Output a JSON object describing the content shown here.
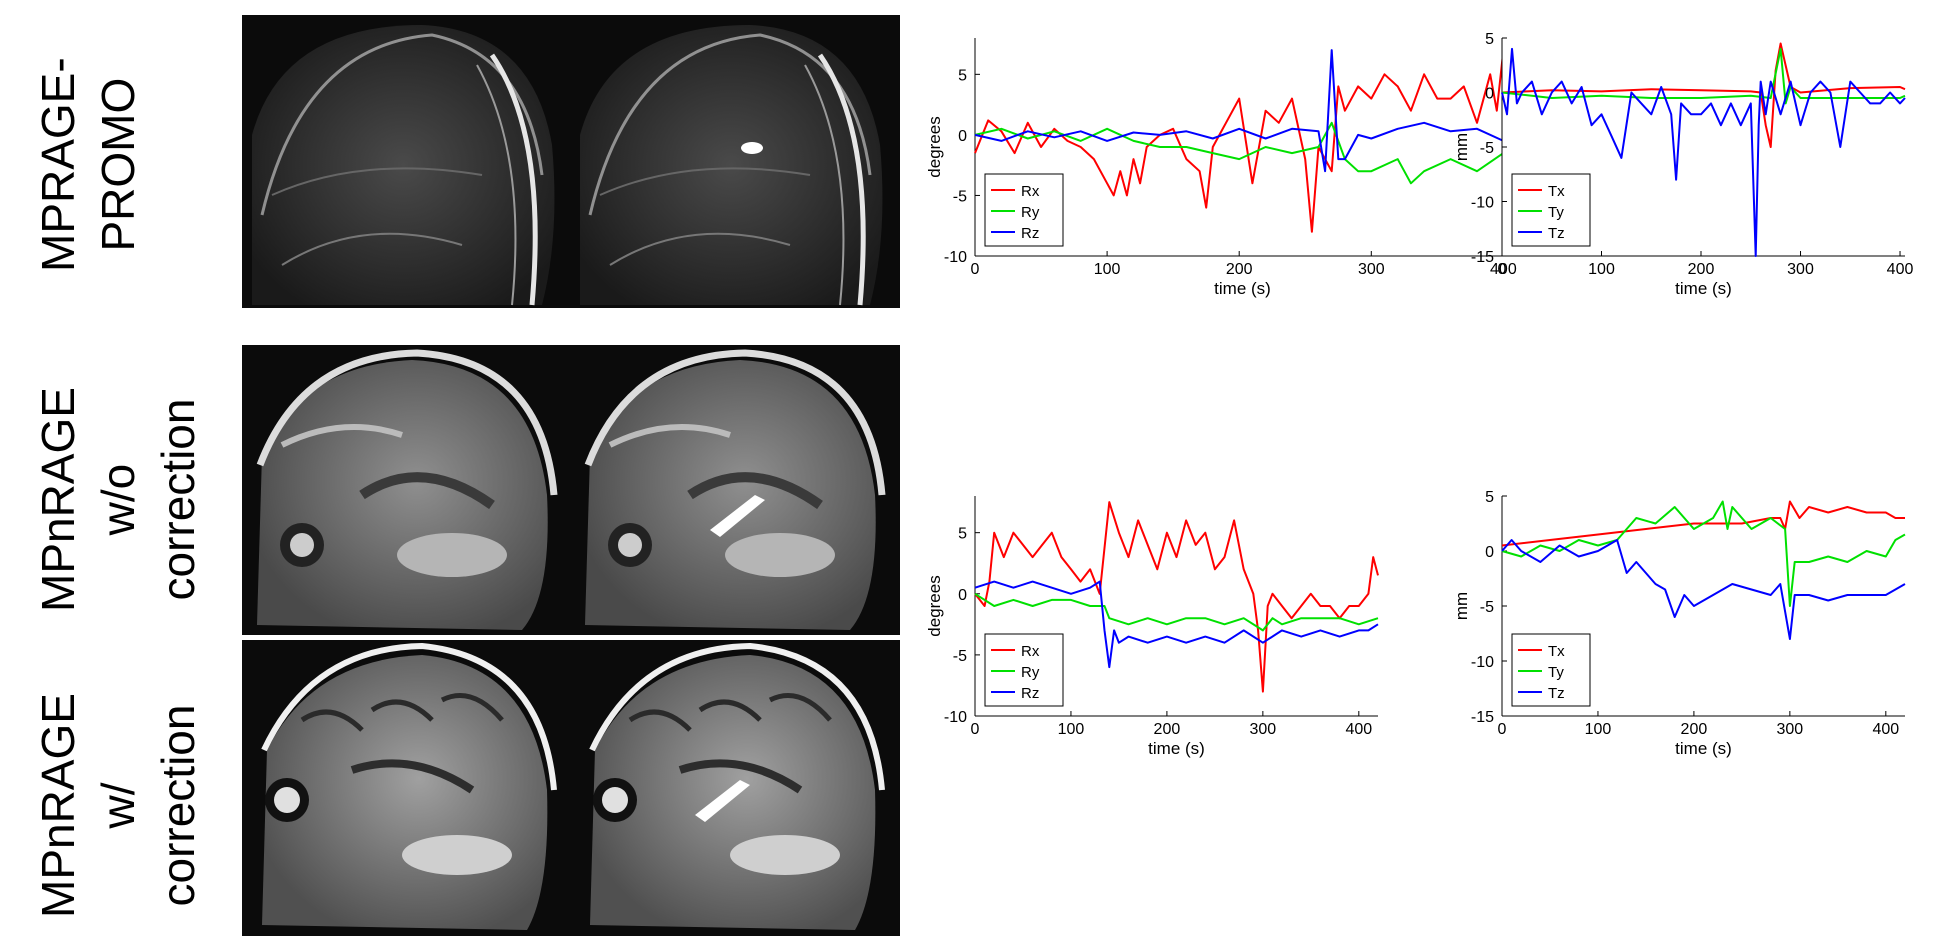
{
  "row_labels": {
    "promo": [
      "MPRAGE-",
      "PROMO"
    ],
    "wo": [
      "MPnRAGE",
      "w/o",
      "correction"
    ],
    "w": [
      "MPnRAGE",
      "w/",
      "correction"
    ]
  },
  "images": {
    "promo_left": "mprage-promo-sagittal",
    "promo_right": "mprage-promo-sagittal-annotated",
    "wo_left": "mpnrage-without-correction-sagittal",
    "wo_right": "mpnrage-without-correction-sagittal-annotated",
    "w_left": "mpnrage-with-correction-sagittal",
    "w_right": "mpnrage-with-correction-sagittal-annotated"
  },
  "colors": {
    "x": "#ff0000",
    "y": "#00e000",
    "z": "#0000ff"
  },
  "chart_data": [
    {
      "type": "line",
      "ylabel": "degrees",
      "xlabel": "time (s)",
      "xlim": [
        0,
        405
      ],
      "ylim": [
        -10,
        8
      ],
      "xticks": [
        0,
        100,
        200,
        300,
        400
      ],
      "yticks": [
        -10,
        -5,
        0,
        5
      ],
      "legend": "bottom-left",
      "series": [
        {
          "name": "Rx",
          "color": "#ff0000",
          "x": [
            0,
            10,
            20,
            30,
            40,
            50,
            60,
            70,
            80,
            90,
            100,
            105,
            110,
            115,
            120,
            125,
            130,
            140,
            150,
            160,
            170,
            175,
            180,
            190,
            200,
            210,
            220,
            230,
            240,
            250,
            255,
            260,
            270,
            275,
            280,
            290,
            300,
            310,
            320,
            330,
            340,
            350,
            360,
            370,
            380,
            390,
            395,
            400,
            405
          ],
          "y": [
            -1.5,
            1.2,
            0.3,
            -1.5,
            1,
            -1,
            0.5,
            -0.5,
            -1,
            -2,
            -4,
            -5,
            -3,
            -5,
            -2,
            -4,
            -1,
            0,
            0.5,
            -2,
            -3,
            -6,
            -1,
            1,
            3,
            -4,
            2,
            1,
            3,
            -2,
            -8,
            -1,
            -3,
            4,
            2,
            4,
            3,
            5,
            4,
            2,
            5,
            3,
            3,
            4,
            1,
            5,
            2,
            7,
            3.5
          ]
        },
        {
          "name": "Ry",
          "color": "#00e000",
          "x": [
            0,
            20,
            40,
            60,
            80,
            100,
            120,
            140,
            160,
            180,
            200,
            220,
            240,
            260,
            270,
            280,
            290,
            300,
            320,
            330,
            340,
            360,
            380,
            400,
            405
          ],
          "y": [
            0,
            0.5,
            -0.3,
            0.3,
            -0.5,
            0.5,
            -0.5,
            -1,
            -1,
            -1.5,
            -2,
            -1,
            -1.5,
            -1,
            1,
            -2,
            -3,
            -3,
            -2,
            -4,
            -3,
            -2,
            -3,
            -1.5,
            -1
          ]
        },
        {
          "name": "Rz",
          "color": "#0000ff",
          "x": [
            0,
            20,
            40,
            60,
            80,
            100,
            120,
            140,
            160,
            180,
            200,
            220,
            240,
            260,
            265,
            270,
            275,
            280,
            290,
            300,
            320,
            340,
            360,
            380,
            400,
            405
          ],
          "y": [
            0,
            -0.5,
            0.3,
            -0.2,
            0.3,
            -0.5,
            0.2,
            0,
            0.3,
            -0.3,
            0.5,
            -0.3,
            0.5,
            0.3,
            -3,
            7,
            -2,
            -2,
            0,
            -0.3,
            0.5,
            1,
            0.3,
            0.5,
            -0.5,
            0
          ]
        }
      ]
    },
    {
      "type": "line",
      "ylabel": "mm",
      "xlabel": "time (s)",
      "xlim": [
        0,
        405
      ],
      "ylim": [
        -15,
        5
      ],
      "xticks": [
        0,
        100,
        200,
        300,
        400
      ],
      "yticks": [
        -15,
        -10,
        -5,
        0,
        5
      ],
      "legend": "bottom-left",
      "series": [
        {
          "name": "Tx",
          "color": "#ff0000",
          "x": [
            0,
            50,
            100,
            150,
            200,
            250,
            260,
            265,
            270,
            275,
            280,
            290,
            300,
            350,
            400,
            405
          ],
          "y": [
            0,
            0.2,
            0.1,
            0.3,
            0.2,
            0.1,
            0,
            -3,
            -5,
            2,
            4.5,
            0.5,
            0,
            0.4,
            0.5,
            0.3
          ]
        },
        {
          "name": "Ty",
          "color": "#00e000",
          "x": [
            0,
            50,
            100,
            150,
            200,
            250,
            270,
            280,
            285,
            290,
            300,
            350,
            400,
            405
          ],
          "y": [
            0,
            -0.5,
            -0.3,
            -0.5,
            -0.5,
            -0.3,
            -0.5,
            4,
            -1,
            0.5,
            -0.5,
            -0.5,
            -0.5,
            -0.3
          ]
        },
        {
          "name": "Tz",
          "color": "#0000ff",
          "x": [
            0,
            5,
            10,
            15,
            20,
            30,
            40,
            50,
            60,
            70,
            80,
            90,
            100,
            110,
            120,
            125,
            130,
            140,
            150,
            160,
            170,
            175,
            180,
            190,
            200,
            210,
            220,
            230,
            240,
            250,
            255,
            258,
            260,
            265,
            270,
            280,
            290,
            300,
            310,
            320,
            330,
            340,
            350,
            360,
            370,
            380,
            390,
            400,
            405
          ],
          "y": [
            0,
            -2,
            4,
            -1,
            0,
            1,
            -2,
            0,
            1,
            -1,
            0.5,
            -3,
            -2,
            -4,
            -6,
            -3,
            0,
            -1,
            -2,
            0.5,
            -2,
            -8,
            -1,
            -2,
            -2,
            -1,
            -3,
            -1,
            -3,
            -1,
            -15,
            -3,
            1,
            -2,
            1,
            -2,
            1,
            -3,
            0,
            1,
            0,
            -5,
            1,
            0,
            -1,
            -1,
            0,
            -1,
            -0.5
          ]
        }
      ]
    },
    {
      "type": "line",
      "ylabel": "degrees",
      "xlabel": "time (s)",
      "xlim": [
        0,
        420
      ],
      "ylim": [
        -10,
        8
      ],
      "xticks": [
        0,
        100,
        200,
        300,
        400
      ],
      "yticks": [
        -10,
        -5,
        0,
        5
      ],
      "legend": "bottom-left",
      "series": [
        {
          "name": "Rx",
          "color": "#ff0000",
          "x": [
            0,
            10,
            15,
            20,
            30,
            40,
            50,
            60,
            70,
            80,
            90,
            100,
            110,
            120,
            130,
            140,
            150,
            160,
            170,
            180,
            190,
            200,
            210,
            220,
            230,
            240,
            250,
            260,
            270,
            280,
            290,
            295,
            300,
            305,
            310,
            320,
            330,
            340,
            350,
            360,
            370,
            380,
            390,
            400,
            410,
            415,
            420
          ],
          "y": [
            0,
            -1,
            1,
            5,
            3,
            5,
            4,
            3,
            4,
            5,
            3,
            2,
            1,
            2,
            0,
            7.5,
            5,
            3,
            6,
            4,
            2,
            5,
            3,
            6,
            4,
            5,
            2,
            3,
            6,
            2,
            0,
            -3,
            -8,
            -1,
            0,
            -1,
            -2,
            -1,
            0,
            -1,
            -1,
            -2,
            -1,
            -1,
            0,
            3,
            1.5
          ]
        },
        {
          "name": "Ry",
          "color": "#00e000",
          "x": [
            0,
            20,
            40,
            60,
            80,
            100,
            120,
            135,
            140,
            160,
            180,
            200,
            220,
            240,
            260,
            280,
            300,
            310,
            320,
            340,
            360,
            380,
            400,
            420
          ],
          "y": [
            0,
            -1,
            -0.5,
            -1,
            -0.5,
            -0.5,
            -1,
            -1,
            -2,
            -2.5,
            -2,
            -2.5,
            -2,
            -2,
            -2.5,
            -2,
            -3,
            -2,
            -2.5,
            -2,
            -2,
            -2,
            -2.5,
            -2
          ]
        },
        {
          "name": "Rz",
          "color": "#0000ff",
          "x": [
            0,
            20,
            40,
            60,
            80,
            100,
            120,
            130,
            135,
            140,
            145,
            150,
            160,
            180,
            200,
            220,
            240,
            260,
            280,
            300,
            320,
            340,
            360,
            380,
            400,
            410,
            420
          ],
          "y": [
            0.5,
            1,
            0.5,
            1,
            0.5,
            0,
            0.5,
            1,
            -3,
            -6,
            -3,
            -4,
            -3.5,
            -4,
            -3.5,
            -4,
            -3.5,
            -4,
            -3,
            -4,
            -3,
            -3.5,
            -3,
            -3.5,
            -3,
            -3,
            -2.5
          ]
        }
      ]
    },
    {
      "type": "line",
      "ylabel": "mm",
      "xlabel": "time (s)",
      "xlim": [
        0,
        420
      ],
      "ylim": [
        -15,
        5
      ],
      "xticks": [
        0,
        100,
        200,
        300,
        400
      ],
      "yticks": [
        -15,
        -10,
        -5,
        0,
        5
      ],
      "legend": "bottom-left",
      "series": [
        {
          "name": "Tx",
          "color": "#ff0000",
          "x": [
            0,
            50,
            100,
            150,
            200,
            250,
            280,
            290,
            295,
            300,
            310,
            320,
            340,
            360,
            380,
            400,
            410,
            420
          ],
          "y": [
            0.5,
            1,
            1.5,
            2,
            2.5,
            2.5,
            3,
            3,
            2,
            4.5,
            3,
            4,
            3.5,
            4,
            3.5,
            3.5,
            3,
            3
          ]
        },
        {
          "name": "Ty",
          "color": "#00e000",
          "x": [
            0,
            20,
            40,
            60,
            80,
            100,
            120,
            140,
            160,
            180,
            200,
            220,
            230,
            235,
            240,
            260,
            280,
            295,
            300,
            305,
            320,
            340,
            360,
            380,
            400,
            410,
            420
          ],
          "y": [
            0,
            -0.5,
            0.5,
            0,
            1,
            0.5,
            1,
            3,
            2.5,
            4,
            2,
            3,
            4.5,
            2,
            4,
            2,
            3,
            2,
            -5,
            -1,
            -1,
            -0.5,
            -1,
            0,
            -0.5,
            1,
            1.5
          ]
        },
        {
          "name": "Tz",
          "color": "#0000ff",
          "x": [
            0,
            10,
            20,
            40,
            60,
            80,
            100,
            120,
            130,
            140,
            150,
            160,
            170,
            180,
            190,
            200,
            220,
            240,
            260,
            280,
            290,
            300,
            305,
            320,
            340,
            360,
            380,
            400,
            410,
            420
          ],
          "y": [
            0,
            1,
            0,
            -1,
            0.5,
            -0.5,
            0,
            1,
            -2,
            -1,
            -2,
            -3,
            -3.5,
            -6,
            -4,
            -5,
            -4,
            -3,
            -3.5,
            -4,
            -3,
            -8,
            -4,
            -4,
            -4.5,
            -4,
            -4,
            -4,
            -3.5,
            -3
          ]
        }
      ]
    }
  ]
}
